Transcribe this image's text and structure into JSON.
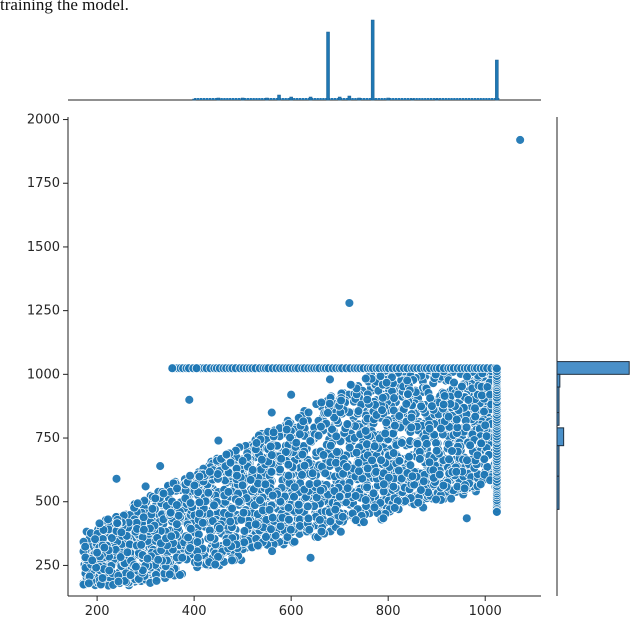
{
  "caption": "training the model.",
  "chart_data": {
    "type": "scatter",
    "title": "",
    "xlabel": "",
    "ylabel": "",
    "xlim": [
      140,
      1115
    ],
    "ylim": [
      130,
      2010
    ],
    "xticks": [
      200,
      400,
      600,
      800,
      1000
    ],
    "yticks": [
      250,
      500,
      750,
      1000,
      1250,
      1500,
      1750,
      2000
    ],
    "grid": false,
    "legend": "none",
    "marker_color": "#1f77b4",
    "marker_edge": "#ffffff",
    "cap_y": 1024,
    "cap_x": 1024,
    "outliers": [
      {
        "x": 720,
        "y": 1280
      },
      {
        "x": 1072,
        "y": 1920
      }
    ],
    "sample_points": [
      {
        "x": 172,
        "y": 175
      },
      {
        "x": 183,
        "y": 180
      },
      {
        "x": 190,
        "y": 270
      },
      {
        "x": 200,
        "y": 300
      },
      {
        "x": 205,
        "y": 415
      },
      {
        "x": 215,
        "y": 320
      },
      {
        "x": 225,
        "y": 230
      },
      {
        "x": 240,
        "y": 590
      },
      {
        "x": 250,
        "y": 380
      },
      {
        "x": 280,
        "y": 245
      },
      {
        "x": 300,
        "y": 560
      },
      {
        "x": 330,
        "y": 640
      },
      {
        "x": 355,
        "y": 1024
      },
      {
        "x": 390,
        "y": 900
      },
      {
        "x": 405,
        "y": 1024
      },
      {
        "x": 450,
        "y": 740
      },
      {
        "x": 478,
        "y": 270
      },
      {
        "x": 500,
        "y": 660
      },
      {
        "x": 560,
        "y": 850
      },
      {
        "x": 600,
        "y": 920
      },
      {
        "x": 640,
        "y": 280
      },
      {
        "x": 680,
        "y": 980
      },
      {
        "x": 700,
        "y": 520
      },
      {
        "x": 750,
        "y": 420
      },
      {
        "x": 790,
        "y": 435
      },
      {
        "x": 850,
        "y": 600
      },
      {
        "x": 900,
        "y": 700
      },
      {
        "x": 962,
        "y": 435
      },
      {
        "x": 1000,
        "y": 800
      },
      {
        "x": 1024,
        "y": 460
      }
    ],
    "top_marginal": {
      "type": "histogram",
      "bins": [
        {
          "x": 400,
          "count": 1
        },
        {
          "x": 450,
          "count": 2
        },
        {
          "x": 500,
          "count": 2
        },
        {
          "x": 550,
          "count": 2
        },
        {
          "x": 575,
          "count": 5
        },
        {
          "x": 600,
          "count": 3
        },
        {
          "x": 640,
          "count": 3
        },
        {
          "x": 676,
          "count": 68
        },
        {
          "x": 700,
          "count": 3
        },
        {
          "x": 720,
          "count": 4
        },
        {
          "x": 740,
          "count": 2
        },
        {
          "x": 768,
          "count": 80
        },
        {
          "x": 800,
          "count": 2
        },
        {
          "x": 850,
          "count": 1
        },
        {
          "x": 900,
          "count": 1
        },
        {
          "x": 1024,
          "count": 40
        }
      ],
      "max_count": 82
    },
    "right_marginal": {
      "type": "histogram",
      "bins": [
        {
          "y": 1000,
          "y2": 1050,
          "count": 76
        },
        {
          "y": 950,
          "y2": 1000,
          "count": 3
        },
        {
          "y": 850,
          "y2": 950,
          "count": 2
        },
        {
          "y": 800,
          "y2": 850,
          "count": 2
        },
        {
          "y": 720,
          "y2": 790,
          "count": 7
        },
        {
          "y": 600,
          "y2": 720,
          "count": 2
        },
        {
          "y": 470,
          "y2": 600,
          "count": 1
        }
      ],
      "max_count": 80
    }
  }
}
